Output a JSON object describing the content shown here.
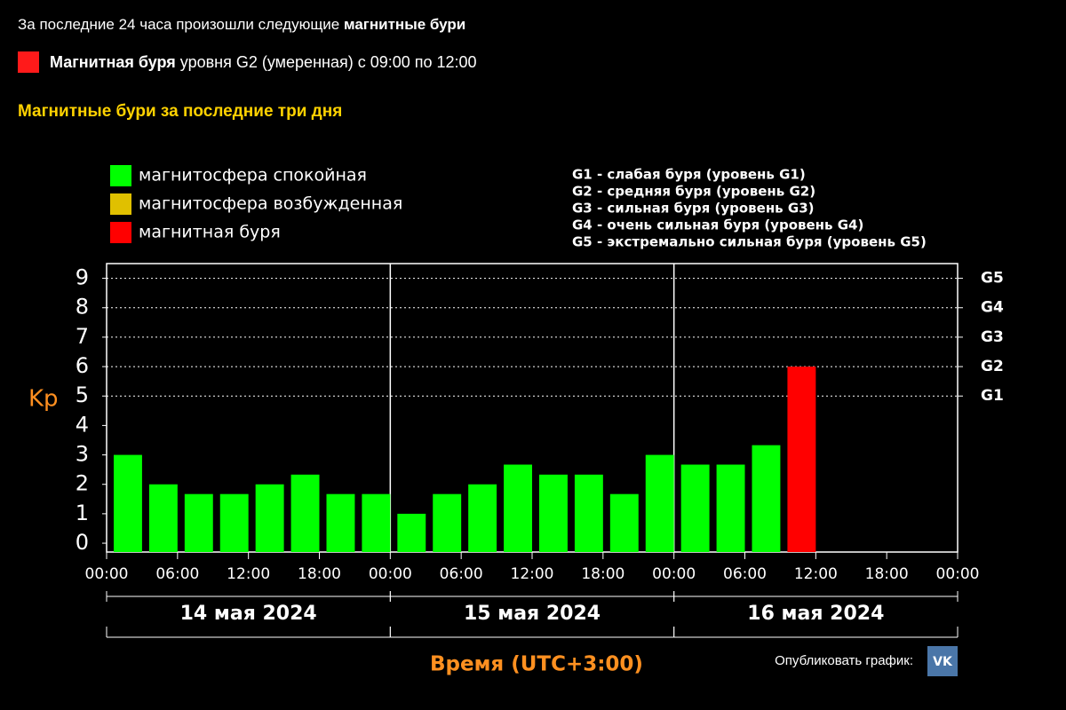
{
  "header": {
    "summary": "За последние 24 часа произошли следующие ",
    "summary_bold": "магнитные бури",
    "storm_bold": "Магнитная буря",
    "storm_text": "уровня G2 (умеренная) с 09:00 по 12:00",
    "section_title": "Магнитные бури за последние три дня",
    "publish": "Опубликовать график:",
    "vk": "VK"
  },
  "chart_data": {
    "type": "bar",
    "y_label": "Kp",
    "x_label": "Время (UTC+3:00)",
    "legend": [
      {
        "name": "магнитосфера спокойная",
        "color": "#00ff00"
      },
      {
        "name": "магнитосфера возбужденная",
        "color": "#e0c000"
      },
      {
        "name": "магнитная буря",
        "color": "#ff0000"
      }
    ],
    "g_legend": [
      "G1 - слабая буря (уровень G1)",
      "G2 - средняя буря (уровень G2)",
      "G3 - сильная буря (уровень G3)",
      "G4 - очень сильная буря (уровень G4)",
      "G5 - экстремально сильная буря (уровень G5)"
    ],
    "series": [
      {
        "x": [
          0,
          3,
          6,
          9,
          12,
          15,
          18,
          21,
          24,
          27,
          30,
          33,
          36,
          39,
          42,
          45,
          48,
          51,
          54,
          57
        ],
        "values": [
          3,
          2,
          1.67,
          1.67,
          2,
          2.33,
          1.67,
          1.67,
          1,
          1.67,
          2,
          2.67,
          2.33,
          2.33,
          1.67,
          3,
          2.67,
          2.67,
          3.33,
          6
        ],
        "colors": [
          "#00ff00",
          "#00ff00",
          "#00ff00",
          "#00ff00",
          "#00ff00",
          "#00ff00",
          "#00ff00",
          "#00ff00",
          "#00ff00",
          "#00ff00",
          "#00ff00",
          "#00ff00",
          "#00ff00",
          "#00ff00",
          "#00ff00",
          "#00ff00",
          "#00ff00",
          "#00ff00",
          "#00ff00",
          "#ff0000"
        ]
      }
    ],
    "xlim": [
      0,
      72
    ],
    "xticks": [
      {
        "value": 0,
        "label": "00:00"
      },
      {
        "value": 6,
        "label": "06:00"
      },
      {
        "value": 12,
        "label": "12:00"
      },
      {
        "value": 18,
        "label": "18:00"
      },
      {
        "value": 24,
        "label": "00:00"
      },
      {
        "value": 30,
        "label": "06:00"
      },
      {
        "value": 36,
        "label": "12:00"
      },
      {
        "value": 42,
        "label": "18:00"
      },
      {
        "value": 48,
        "label": "00:00"
      },
      {
        "value": 54,
        "label": "06:00"
      },
      {
        "value": 60,
        "label": "12:00"
      },
      {
        "value": 66,
        "label": "18:00"
      },
      {
        "value": 72,
        "label": "00:00"
      }
    ],
    "day_labels": [
      "14 мая 2024",
      "15 мая 2024",
      "16 мая 2024"
    ],
    "ylim": [
      -0.3,
      9.5
    ],
    "yticks": [
      0,
      1,
      2,
      3,
      4,
      5,
      6,
      7,
      8,
      9
    ],
    "y2lim": [
      -0.3,
      9.5
    ],
    "y2ticks": [
      {
        "value": 5,
        "label": "G1"
      },
      {
        "value": 6,
        "label": "G2"
      },
      {
        "value": 7,
        "label": "G3"
      },
      {
        "value": 8,
        "label": "G4"
      },
      {
        "value": 9,
        "label": "G5"
      }
    ],
    "grid": true
  }
}
